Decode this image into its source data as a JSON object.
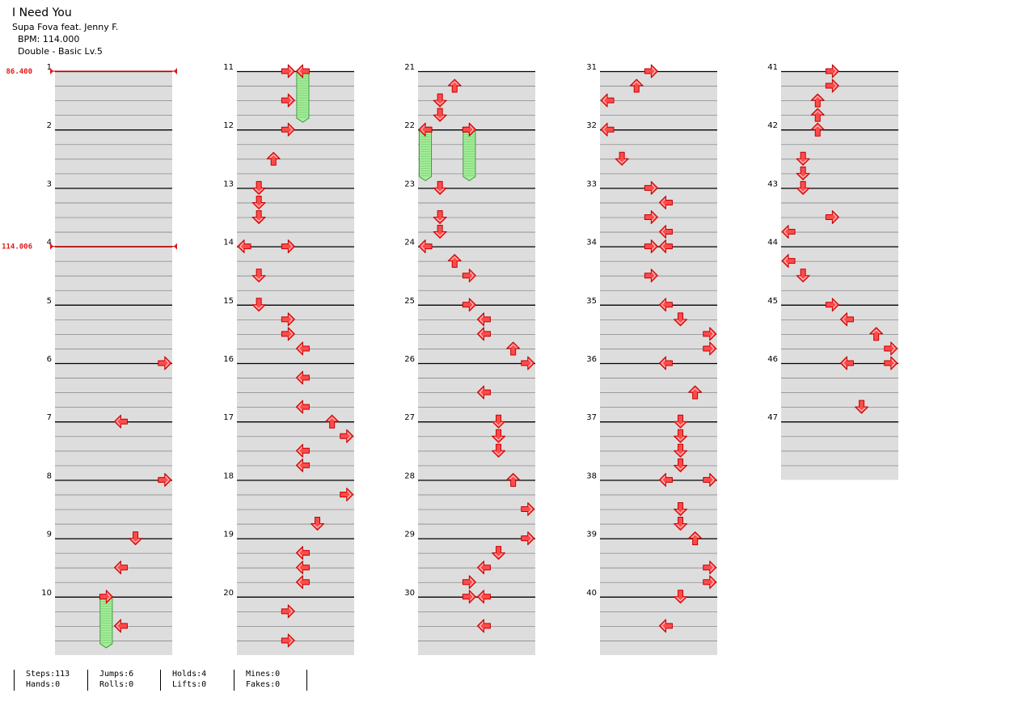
{
  "song": {
    "title": "I Need You",
    "artist": "Supa Fova feat. Jenny F.",
    "bpm_label": "BPM: 114.000",
    "difficulty_label": "Double - Basic  Lv.5"
  },
  "colors": {
    "arrow_fill": "#ff4a4a",
    "arrow_stroke": "#c40000",
    "hold_fill": "#a6ee9c",
    "hold_stroke": "#3a9a3a",
    "bpm_marker": "#e01818",
    "measure_band": "#dddddd"
  },
  "chart": {
    "measure_count": 47,
    "lanes": [
      "left",
      "down",
      "up",
      "right",
      "left",
      "down",
      "up",
      "right"
    ],
    "lane_glyphs": {
      "left": "left-arrow",
      "down": "down-arrow",
      "up": "up-arrow",
      "right": "right-arrow"
    },
    "bpm_changes": [
      {
        "measure": 1,
        "beat": 0,
        "label": "86.400"
      },
      {
        "measure": 4,
        "beat": 0,
        "label": "114.006"
      }
    ],
    "notes": [
      {
        "m": 6,
        "b": 0,
        "lanes": [
          7
        ]
      },
      {
        "m": 7,
        "b": 0,
        "lanes": [
          4
        ]
      },
      {
        "m": 8,
        "b": 0,
        "lanes": [
          7
        ]
      },
      {
        "m": 9,
        "b": 0,
        "lanes": [
          5
        ]
      },
      {
        "m": 9,
        "b": 2,
        "lanes": [
          4
        ]
      },
      {
        "m": 10,
        "b": 2,
        "lanes": [
          4
        ]
      },
      {
        "m": 11,
        "b": 0,
        "lanes": [
          3
        ]
      },
      {
        "m": 11,
        "b": 2,
        "lanes": [
          3
        ]
      },
      {
        "m": 12,
        "b": 0,
        "lanes": [
          3
        ]
      },
      {
        "m": 12,
        "b": 2,
        "lanes": [
          2
        ]
      },
      {
        "m": 13,
        "b": 0,
        "lanes": [
          1
        ]
      },
      {
        "m": 13,
        "b": 1,
        "lanes": [
          1
        ]
      },
      {
        "m": 13,
        "b": 2,
        "lanes": [
          1
        ]
      },
      {
        "m": 14,
        "b": 0,
        "lanes": [
          0,
          3
        ]
      },
      {
        "m": 14,
        "b": 2,
        "lanes": [
          1
        ]
      },
      {
        "m": 15,
        "b": 0,
        "lanes": [
          1
        ]
      },
      {
        "m": 15,
        "b": 1,
        "lanes": [
          3
        ]
      },
      {
        "m": 15,
        "b": 2,
        "lanes": [
          3
        ]
      },
      {
        "m": 15,
        "b": 3,
        "lanes": [
          4
        ]
      },
      {
        "m": 16,
        "b": 1,
        "lanes": [
          4
        ]
      },
      {
        "m": 16,
        "b": 3,
        "lanes": [
          4
        ]
      },
      {
        "m": 17,
        "b": 0,
        "lanes": [
          6
        ]
      },
      {
        "m": 17,
        "b": 1,
        "lanes": [
          7
        ]
      },
      {
        "m": 17,
        "b": 2,
        "lanes": [
          4
        ]
      },
      {
        "m": 17,
        "b": 3,
        "lanes": [
          4
        ]
      },
      {
        "m": 18,
        "b": 1,
        "lanes": [
          7
        ]
      },
      {
        "m": 18,
        "b": 3,
        "lanes": [
          5
        ]
      },
      {
        "m": 19,
        "b": 1,
        "lanes": [
          4
        ]
      },
      {
        "m": 19,
        "b": 2,
        "lanes": [
          4
        ]
      },
      {
        "m": 19,
        "b": 3,
        "lanes": [
          4
        ]
      },
      {
        "m": 20,
        "b": 1,
        "lanes": [
          3
        ]
      },
      {
        "m": 20,
        "b": 3,
        "lanes": [
          3
        ]
      },
      {
        "m": 21,
        "b": 1,
        "lanes": [
          2
        ]
      },
      {
        "m": 21,
        "b": 2,
        "lanes": [
          1
        ]
      },
      {
        "m": 21,
        "b": 3,
        "lanes": [
          1
        ]
      },
      {
        "m": 22,
        "b": 0,
        "lanes": [
          0,
          3
        ]
      },
      {
        "m": 23,
        "b": 0,
        "lanes": [
          1
        ]
      },
      {
        "m": 23,
        "b": 2,
        "lanes": [
          1
        ]
      },
      {
        "m": 23,
        "b": 3,
        "lanes": [
          1
        ]
      },
      {
        "m": 24,
        "b": 0,
        "lanes": [
          0
        ]
      },
      {
        "m": 24,
        "b": 1,
        "lanes": [
          2
        ]
      },
      {
        "m": 24,
        "b": 2,
        "lanes": [
          3
        ]
      },
      {
        "m": 25,
        "b": 0,
        "lanes": [
          3
        ]
      },
      {
        "m": 25,
        "b": 1,
        "lanes": [
          4
        ]
      },
      {
        "m": 25,
        "b": 2,
        "lanes": [
          4
        ]
      },
      {
        "m": 25,
        "b": 3,
        "lanes": [
          6
        ]
      },
      {
        "m": 26,
        "b": 0,
        "lanes": [
          7
        ]
      },
      {
        "m": 26,
        "b": 2,
        "lanes": [
          4
        ]
      },
      {
        "m": 27,
        "b": 0,
        "lanes": [
          5
        ]
      },
      {
        "m": 27,
        "b": 1,
        "lanes": [
          5
        ]
      },
      {
        "m": 27,
        "b": 2,
        "lanes": [
          5
        ]
      },
      {
        "m": 28,
        "b": 0,
        "lanes": [
          6
        ]
      },
      {
        "m": 28,
        "b": 2,
        "lanes": [
          7
        ]
      },
      {
        "m": 29,
        "b": 0,
        "lanes": [
          7
        ]
      },
      {
        "m": 29,
        "b": 1,
        "lanes": [
          5
        ]
      },
      {
        "m": 29,
        "b": 2,
        "lanes": [
          4
        ]
      },
      {
        "m": 29,
        "b": 3,
        "lanes": [
          3
        ]
      },
      {
        "m": 30,
        "b": 0,
        "lanes": [
          3,
          4
        ]
      },
      {
        "m": 30,
        "b": 2,
        "lanes": [
          4
        ]
      },
      {
        "m": 31,
        "b": 0,
        "lanes": [
          3
        ]
      },
      {
        "m": 31,
        "b": 1,
        "lanes": [
          2
        ]
      },
      {
        "m": 31,
        "b": 2,
        "lanes": [
          0
        ]
      },
      {
        "m": 32,
        "b": 0,
        "lanes": [
          0
        ]
      },
      {
        "m": 32,
        "b": 2,
        "lanes": [
          1
        ]
      },
      {
        "m": 33,
        "b": 0,
        "lanes": [
          3
        ]
      },
      {
        "m": 33,
        "b": 1,
        "lanes": [
          4
        ]
      },
      {
        "m": 33,
        "b": 2,
        "lanes": [
          3
        ]
      },
      {
        "m": 33,
        "b": 3,
        "lanes": [
          4
        ]
      },
      {
        "m": 34,
        "b": 0,
        "lanes": [
          3,
          4
        ]
      },
      {
        "m": 34,
        "b": 2,
        "lanes": [
          3
        ]
      },
      {
        "m": 35,
        "b": 0,
        "lanes": [
          4
        ]
      },
      {
        "m": 35,
        "b": 1,
        "lanes": [
          5
        ]
      },
      {
        "m": 35,
        "b": 2,
        "lanes": [
          7
        ]
      },
      {
        "m": 35,
        "b": 3,
        "lanes": [
          7
        ]
      },
      {
        "m": 36,
        "b": 0,
        "lanes": [
          4
        ]
      },
      {
        "m": 36,
        "b": 2,
        "lanes": [
          6
        ]
      },
      {
        "m": 37,
        "b": 0,
        "lanes": [
          5
        ]
      },
      {
        "m": 37,
        "b": 1,
        "lanes": [
          5
        ]
      },
      {
        "m": 37,
        "b": 2,
        "lanes": [
          5
        ]
      },
      {
        "m": 37,
        "b": 3,
        "lanes": [
          5
        ]
      },
      {
        "m": 38,
        "b": 0,
        "lanes": [
          4,
          7
        ]
      },
      {
        "m": 38,
        "b": 2,
        "lanes": [
          5
        ]
      },
      {
        "m": 38,
        "b": 3,
        "lanes": [
          5
        ]
      },
      {
        "m": 39,
        "b": 0,
        "lanes": [
          6
        ]
      },
      {
        "m": 39,
        "b": 2,
        "lanes": [
          7
        ]
      },
      {
        "m": 39,
        "b": 3,
        "lanes": [
          7
        ]
      },
      {
        "m": 40,
        "b": 0,
        "lanes": [
          5
        ]
      },
      {
        "m": 40,
        "b": 2,
        "lanes": [
          4
        ]
      },
      {
        "m": 41,
        "b": 0,
        "lanes": [
          3
        ]
      },
      {
        "m": 41,
        "b": 1,
        "lanes": [
          3
        ]
      },
      {
        "m": 41,
        "b": 2,
        "lanes": [
          2
        ]
      },
      {
        "m": 41,
        "b": 3,
        "lanes": [
          2
        ]
      },
      {
        "m": 42,
        "b": 0,
        "lanes": [
          2
        ]
      },
      {
        "m": 42,
        "b": 2,
        "lanes": [
          1
        ]
      },
      {
        "m": 42,
        "b": 3,
        "lanes": [
          1
        ]
      },
      {
        "m": 43,
        "b": 0,
        "lanes": [
          1
        ]
      },
      {
        "m": 43,
        "b": 2,
        "lanes": [
          3
        ]
      },
      {
        "m": 43,
        "b": 3,
        "lanes": [
          0
        ]
      },
      {
        "m": 44,
        "b": 1,
        "lanes": [
          0
        ]
      },
      {
        "m": 44,
        "b": 2,
        "lanes": [
          1
        ]
      },
      {
        "m": 45,
        "b": 0,
        "lanes": [
          3
        ]
      },
      {
        "m": 45,
        "b": 1,
        "lanes": [
          4
        ]
      },
      {
        "m": 45,
        "b": 2,
        "lanes": [
          6
        ]
      },
      {
        "m": 45,
        "b": 3,
        "lanes": [
          7
        ]
      },
      {
        "m": 46,
        "b": 0,
        "lanes": [
          4,
          7
        ]
      },
      {
        "m": 46,
        "b": 3,
        "lanes": [
          5
        ]
      }
    ],
    "holds": [
      {
        "m": 10,
        "b": 0,
        "lane": 3,
        "beats": 3.5
      },
      {
        "m": 11,
        "b": 0,
        "lane": 4,
        "beats": 3.5
      },
      {
        "m": 22,
        "b": 0,
        "lane": 0,
        "beats": 3.5
      },
      {
        "m": 22,
        "b": 0,
        "lane": 3,
        "beats": 3.5
      }
    ]
  },
  "footer": {
    "stats": [
      [
        "Steps:113",
        "Hands:0"
      ],
      [
        "Jumps:6",
        "Rolls:0"
      ],
      [
        "Holds:4",
        "Lifts:0"
      ],
      [
        "Mines:0",
        "Fakes:0"
      ]
    ]
  }
}
